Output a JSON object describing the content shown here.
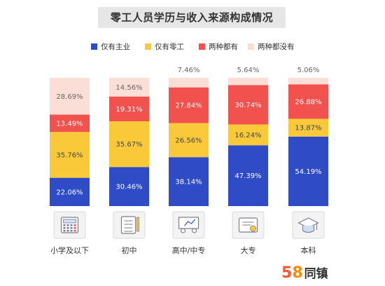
{
  "title": "零工人员学历与收入来源构成情况",
  "brand": {
    "num5": "5",
    "num8": "8",
    "text": "同镇"
  },
  "colors": {
    "main_job": "#2f4cc6",
    "gig_only": "#f9c93a",
    "both": "#f2524e",
    "neither": "#fbded6",
    "icon_box": "#f3f3f3",
    "icon_stroke": "#7a7f8c"
  },
  "chart_data": {
    "type": "bar",
    "stacked": true,
    "categories": [
      "小学及以下",
      "初中",
      "高中/中专",
      "大专",
      "本科"
    ],
    "series": [
      {
        "name": "仅有主业",
        "values": [
          22.06,
          30.46,
          38.14,
          47.39,
          54.19
        ],
        "labels": [
          "22.06%",
          "30.46%",
          "38.14%",
          "47.39%",
          "54.19%"
        ]
      },
      {
        "name": "仅有零工",
        "values": [
          35.76,
          35.67,
          26.56,
          16.24,
          13.87
        ],
        "labels": [
          "35.76%",
          "35.67%",
          "26.56%",
          "16.24%",
          "13.87%"
        ]
      },
      {
        "name": "两种都有",
        "values": [
          13.49,
          19.31,
          27.84,
          30.74,
          26.88
        ],
        "labels": [
          "13.49%",
          "19.31%",
          "27.84%",
          "30.74%",
          "26.88%"
        ]
      },
      {
        "name": "两种都没有",
        "values": [
          28.69,
          14.56,
          7.46,
          5.64,
          5.06
        ],
        "labels": [
          "28.69%",
          "14.56%",
          "7.46%",
          "5.64%",
          "5.06%"
        ]
      }
    ],
    "ylim": [
      0,
      100
    ],
    "icons": [
      "calculator-icon",
      "notebook-icon",
      "classroom-icon",
      "diploma-scroll-icon",
      "graduation-cap-icon"
    ]
  }
}
